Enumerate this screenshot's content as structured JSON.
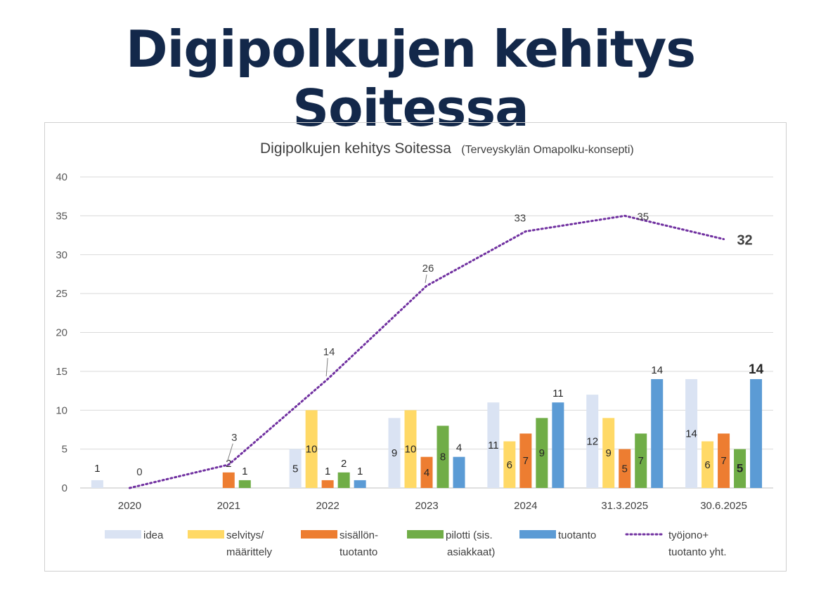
{
  "slide": {
    "title": "Digipolkujen kehitys Soitessa"
  },
  "chart_data": {
    "type": "bar",
    "title": "Digipolkujen kehitys Soitessa",
    "subtitle": "(Terveyskylän Omapolku-konsepti)",
    "categories": [
      "2020",
      "2021",
      "2022",
      "2023",
      "2024",
      "31.3.2025",
      "30.6.2025"
    ],
    "ylim": [
      0,
      40
    ],
    "yticks": [
      0,
      5,
      10,
      15,
      20,
      25,
      30,
      35,
      40
    ],
    "grid": true,
    "legend_position": "bottom",
    "series": [
      {
        "name": "idea",
        "legend_lines": [
          "idea"
        ],
        "color": "#dae3f3",
        "values": [
          1,
          null,
          5,
          9,
          11,
          12,
          14
        ],
        "labels": [
          "1",
          "",
          "5",
          "9",
          "11",
          "12",
          "14"
        ]
      },
      {
        "name": "selvitys/ määrittely",
        "legend_lines": [
          "selvitys/",
          "määrittely"
        ],
        "color": "#ffd966",
        "values": [
          null,
          null,
          10,
          10,
          6,
          9,
          6
        ],
        "labels": [
          "",
          "",
          "10",
          "10",
          "6",
          "9",
          "6"
        ]
      },
      {
        "name": "sisällön- tuotanto",
        "legend_lines": [
          "sisällön-",
          "tuotanto"
        ],
        "color": "#ed7d31",
        "values": [
          null,
          2,
          1,
          4,
          7,
          5,
          7
        ],
        "labels": [
          "",
          "2",
          "1",
          "4",
          "7",
          "5",
          "7"
        ]
      },
      {
        "name": "pilotti (sis. asiakkaat)",
        "legend_lines": [
          "pilotti (sis.",
          "asiakkaat)"
        ],
        "color": "#70ad47",
        "values": [
          null,
          1,
          2,
          8,
          9,
          7,
          5
        ],
        "labels": [
          "",
          "1",
          "2",
          "8",
          "9",
          "7",
          "5"
        ]
      },
      {
        "name": "tuotanto",
        "legend_lines": [
          "tuotanto"
        ],
        "color": "#5b9bd5",
        "values": [
          null,
          null,
          1,
          4,
          11,
          14,
          14
        ],
        "labels": [
          "",
          "",
          "1",
          "4",
          "11",
          "14",
          "14"
        ]
      }
    ],
    "line": {
      "name": "työjono+ tuotanto yht.",
      "legend_lines": [
        "työjono+",
        "tuotanto yht."
      ],
      "color": "#7030a0",
      "style": "dotted",
      "values": [
        0,
        3,
        14,
        26,
        33,
        35,
        32
      ],
      "labels": [
        "0",
        "3",
        "14",
        "26",
        "33",
        "35",
        "32"
      ]
    }
  }
}
